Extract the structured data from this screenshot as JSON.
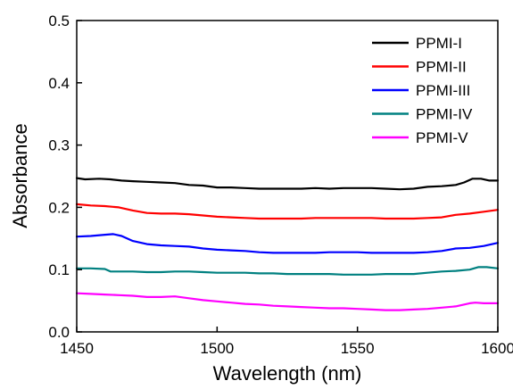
{
  "chart_data": {
    "type": "line",
    "title": "",
    "xlabel": "Wavelength (nm)",
    "ylabel": "Absorbance",
    "xlim": [
      1450,
      1600
    ],
    "ylim": [
      0.0,
      0.5
    ],
    "xticks": [
      1450,
      1500,
      1550,
      1600
    ],
    "xtick_labels": [
      "1450",
      "1500",
      "1550",
      "1600"
    ],
    "yticks": [
      0.0,
      0.1,
      0.2,
      0.3,
      0.4,
      0.5
    ],
    "ytick_labels": [
      "0.0",
      "0.1",
      "0.2",
      "0.3",
      "0.4",
      "0.5"
    ],
    "grid": false,
    "legend_position": "top-right",
    "series": [
      {
        "name": "PPMI-I",
        "color": "#000000",
        "x": [
          1450,
          1453,
          1458,
          1462,
          1466,
          1470,
          1475,
          1480,
          1485,
          1490,
          1495,
          1500,
          1505,
          1510,
          1515,
          1520,
          1525,
          1530,
          1535,
          1540,
          1545,
          1550,
          1555,
          1560,
          1565,
          1570,
          1575,
          1580,
          1585,
          1588,
          1591,
          1594,
          1597,
          1600
        ],
        "y": [
          0.247,
          0.245,
          0.246,
          0.245,
          0.243,
          0.242,
          0.241,
          0.24,
          0.239,
          0.236,
          0.235,
          0.232,
          0.232,
          0.231,
          0.23,
          0.23,
          0.23,
          0.23,
          0.231,
          0.23,
          0.231,
          0.231,
          0.231,
          0.23,
          0.229,
          0.23,
          0.233,
          0.234,
          0.236,
          0.24,
          0.246,
          0.246,
          0.243,
          0.243
        ]
      },
      {
        "name": "PPMI-II",
        "color": "#ff0000",
        "x": [
          1450,
          1455,
          1460,
          1465,
          1470,
          1475,
          1480,
          1485,
          1490,
          1495,
          1500,
          1505,
          1510,
          1515,
          1520,
          1525,
          1530,
          1535,
          1540,
          1545,
          1550,
          1555,
          1560,
          1565,
          1570,
          1575,
          1580,
          1585,
          1590,
          1595,
          1600
        ],
        "y": [
          0.205,
          0.203,
          0.202,
          0.2,
          0.195,
          0.191,
          0.19,
          0.19,
          0.189,
          0.187,
          0.185,
          0.184,
          0.183,
          0.182,
          0.182,
          0.182,
          0.182,
          0.183,
          0.183,
          0.183,
          0.183,
          0.183,
          0.182,
          0.182,
          0.182,
          0.183,
          0.184,
          0.188,
          0.19,
          0.193,
          0.196
        ]
      },
      {
        "name": "PPMI-III",
        "color": "#0000ff",
        "x": [
          1450,
          1455,
          1460,
          1463,
          1466,
          1470,
          1475,
          1480,
          1485,
          1490,
          1495,
          1500,
          1505,
          1510,
          1515,
          1520,
          1525,
          1530,
          1535,
          1540,
          1545,
          1550,
          1555,
          1560,
          1565,
          1570,
          1575,
          1580,
          1585,
          1590,
          1595,
          1600
        ],
        "y": [
          0.153,
          0.154,
          0.156,
          0.157,
          0.154,
          0.146,
          0.141,
          0.139,
          0.138,
          0.137,
          0.134,
          0.132,
          0.131,
          0.13,
          0.128,
          0.127,
          0.127,
          0.127,
          0.127,
          0.128,
          0.128,
          0.128,
          0.127,
          0.127,
          0.127,
          0.127,
          0.128,
          0.13,
          0.134,
          0.135,
          0.138,
          0.143
        ]
      },
      {
        "name": "PPMI-IV",
        "color": "#008080",
        "x": [
          1450,
          1455,
          1460,
          1462,
          1465,
          1470,
          1475,
          1480,
          1485,
          1490,
          1495,
          1500,
          1505,
          1510,
          1515,
          1520,
          1525,
          1530,
          1535,
          1540,
          1545,
          1550,
          1555,
          1560,
          1565,
          1570,
          1575,
          1580,
          1585,
          1590,
          1593,
          1596,
          1600
        ],
        "y": [
          0.102,
          0.102,
          0.101,
          0.097,
          0.097,
          0.097,
          0.096,
          0.096,
          0.097,
          0.097,
          0.096,
          0.095,
          0.095,
          0.095,
          0.094,
          0.094,
          0.093,
          0.093,
          0.093,
          0.093,
          0.092,
          0.092,
          0.092,
          0.093,
          0.093,
          0.093,
          0.095,
          0.097,
          0.098,
          0.1,
          0.104,
          0.104,
          0.102
        ]
      },
      {
        "name": "PPMI-V",
        "color": "#ff00ff",
        "x": [
          1450,
          1455,
          1460,
          1465,
          1470,
          1475,
          1480,
          1485,
          1490,
          1495,
          1500,
          1505,
          1510,
          1515,
          1520,
          1525,
          1530,
          1535,
          1540,
          1545,
          1550,
          1555,
          1560,
          1565,
          1570,
          1575,
          1580,
          1585,
          1590,
          1592,
          1595,
          1600
        ],
        "y": [
          0.062,
          0.061,
          0.06,
          0.059,
          0.058,
          0.056,
          0.056,
          0.057,
          0.054,
          0.051,
          0.049,
          0.047,
          0.045,
          0.044,
          0.042,
          0.041,
          0.04,
          0.039,
          0.038,
          0.038,
          0.037,
          0.036,
          0.035,
          0.035,
          0.036,
          0.037,
          0.039,
          0.041,
          0.046,
          0.047,
          0.046,
          0.046
        ]
      }
    ]
  }
}
